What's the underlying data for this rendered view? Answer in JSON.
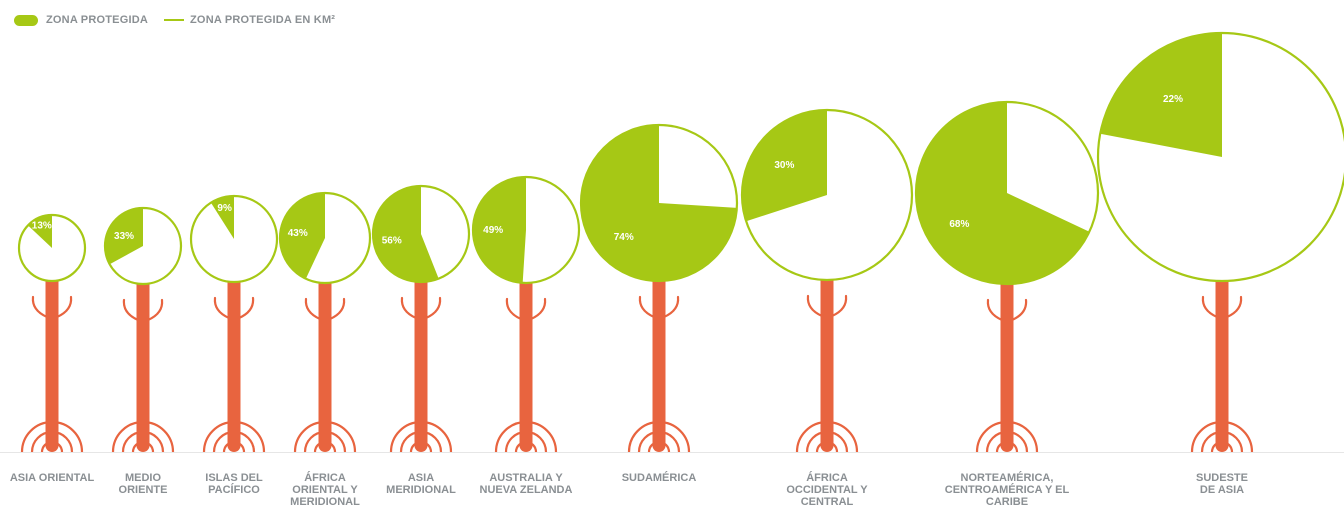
{
  "colors": {
    "protected": "#a6c815",
    "circle_stroke": "#a6c815",
    "tree": "#e8643f",
    "text": "#8a8f93",
    "pct_text": "#ffffff",
    "baseline": "#e6e6e6"
  },
  "legend": {
    "items": [
      {
        "label": "ZONA PROTEGIDA",
        "kind": "pill"
      },
      {
        "label": "ZONA PROTEGIDA EN KM²",
        "kind": "line"
      }
    ]
  },
  "chart_data": {
    "type": "pie",
    "series": [
      {
        "name": "ZONA PROTEGIDA",
        "unit": "%"
      },
      {
        "name": "ZONA PROTEGIDA EN KM²",
        "encoding": "circle size"
      }
    ],
    "regions": [
      {
        "name": "ASIA ORIENTAL",
        "label_lines": [
          "ASIA ORIENTAL"
        ],
        "protected_pct": 13,
        "pct_label": "13%"
      },
      {
        "name": "MEDIO ORIENTE",
        "label_lines": [
          "MEDIO",
          "ORIENTE"
        ],
        "protected_pct": 33,
        "pct_label": "33%"
      },
      {
        "name": "ISLAS DEL PACÍFICO",
        "label_lines": [
          "ISLAS DEL",
          "PACÍFICO"
        ],
        "protected_pct": 9,
        "pct_label": "9%"
      },
      {
        "name": "ÁFRICA ORIENTAL Y MERIDIONAL",
        "label_lines": [
          "ÁFRICA",
          "ORIENTAL Y",
          "MERIDIONAL"
        ],
        "protected_pct": 43,
        "pct_label": "43%"
      },
      {
        "name": "ASIA MERIDIONAL",
        "label_lines": [
          "ASIA",
          "MERIDIONAL"
        ],
        "protected_pct": 56,
        "pct_label": "56%"
      },
      {
        "name": "AUSTRALIA Y NUEVA ZELANDA",
        "label_lines": [
          "AUSTRALIA Y",
          "NUEVA ZELANDA"
        ],
        "protected_pct": 49,
        "pct_label": "49%"
      },
      {
        "name": "SUDAMÉRICA",
        "label_lines": [
          "SUDAMÉRICA"
        ],
        "protected_pct": 74,
        "pct_label": "74%"
      },
      {
        "name": "ÁFRICA OCCIDENTAL Y CENTRAL",
        "label_lines": [
          "ÁFRICA",
          "OCCIDENTAL Y",
          "CENTRAL"
        ],
        "protected_pct": 30,
        "pct_label": "30%"
      },
      {
        "name": "NORTEAMÉRICA, CENTROAMÉRICA Y EL CARIBE",
        "label_lines": [
          "NORTEAMÉRICA,",
          "CENTROAMÉRICA Y EL",
          "CARIBE"
        ],
        "protected_pct": 68,
        "pct_label": "68%"
      },
      {
        "name": "SUDESTE DE ASIA",
        "label_lines": [
          "SUDESTE",
          "DE ASIA"
        ],
        "protected_pct": 22,
        "pct_label": "22%"
      }
    ]
  }
}
